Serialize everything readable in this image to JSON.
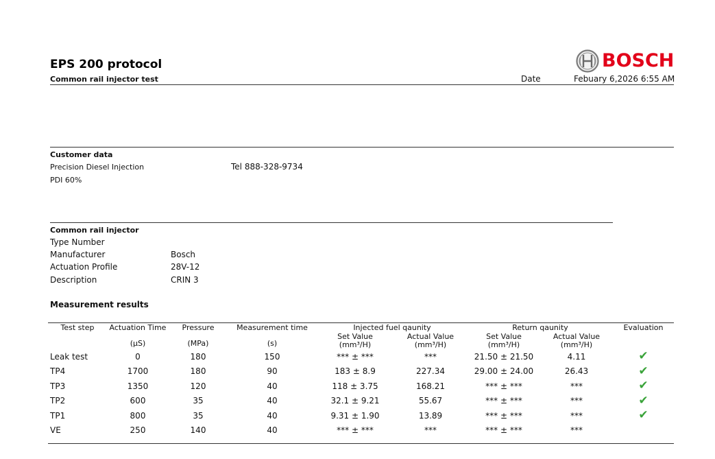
{
  "header": {
    "title": "EPS 200 protocol",
    "subtitle": "Common rail injector test",
    "date_label": "Date",
    "date_value": "Febuary 6,2026 6:55 AM",
    "logo_text": "BOSCH",
    "brand_color": "#e2001a"
  },
  "customer": {
    "heading": "Customer data",
    "name": "Precision Diesel Injection",
    "phone": "Tel 888-328-9734",
    "line2": "PDI 60%"
  },
  "injector": {
    "heading": "Common rail injector",
    "rows": [
      {
        "label": "Type Number",
        "value": ""
      },
      {
        "label": "Manufacturer",
        "value": "Bosch"
      },
      {
        "label": "Actuation Profile",
        "value": "28V-12"
      },
      {
        "label": "Description",
        "value": "CRIN 3"
      }
    ]
  },
  "measurement": {
    "heading": "Measurement results",
    "columns": {
      "test_step": "Test step",
      "actuation_time": "Actuation Time",
      "actuation_unit": "(µS)",
      "pressure": "Pressure",
      "pressure_unit": "(MPa)",
      "measurement_time": "Measurement time",
      "measurement_unit": "(s)",
      "injected": "Injected fuel qaunity",
      "return": "Return qaunity",
      "evaluation": "Evaluation",
      "set_value": "Set Value",
      "actual_value": "Actual Value",
      "unit": "(mm³/H)"
    },
    "rows": [
      {
        "step": "Leak test",
        "act": "0",
        "press": "180",
        "mtime": "150",
        "inj_set": "*** ± ***",
        "inj_act": "***",
        "ret_set": "21.50 ± 21.50",
        "ret_act": "4.11",
        "pass": true
      },
      {
        "step": "TP4",
        "act": "1700",
        "press": "180",
        "mtime": "90",
        "inj_set": "183 ± 8.9",
        "inj_act": "227.34",
        "ret_set": "29.00 ± 24.00",
        "ret_act": "26.43",
        "pass": true
      },
      {
        "step": "TP3",
        "act": "1350",
        "press": "120",
        "mtime": "40",
        "inj_set": "118 ± 3.75",
        "inj_act": "168.21",
        "ret_set": "*** ± ***",
        "ret_act": "***",
        "pass": true
      },
      {
        "step": "TP2",
        "act": "600",
        "press": "35",
        "mtime": "40",
        "inj_set": "32.1 ± 9.21",
        "inj_act": "55.67",
        "ret_set": "*** ± ***",
        "ret_act": "***",
        "pass": true
      },
      {
        "step": "TP1",
        "act": "800",
        "press": "35",
        "mtime": "40",
        "inj_set": "9.31 ± 1.90",
        "inj_act": "13.89",
        "ret_set": "*** ± ***",
        "ret_act": "***",
        "pass": true
      },
      {
        "step": "VE",
        "act": "250",
        "press": "140",
        "mtime": "40",
        "inj_set": "*** ± ***",
        "inj_act": "***",
        "ret_set": "*** ± ***",
        "ret_act": "***",
        "pass": false
      }
    ],
    "check_symbol": "✔",
    "check_color": "#3aa33a"
  }
}
